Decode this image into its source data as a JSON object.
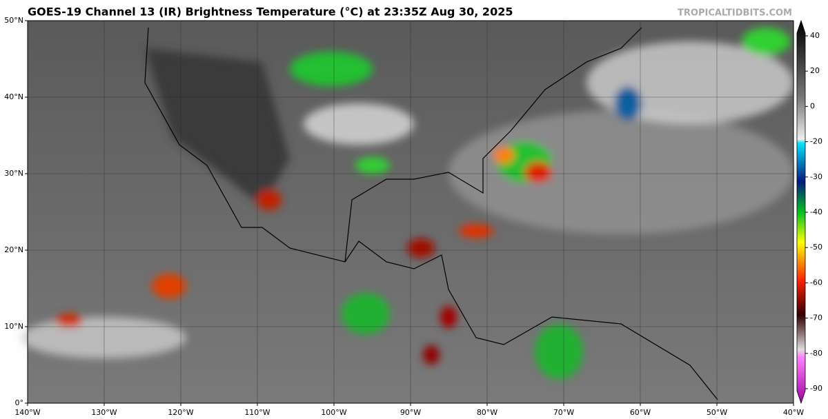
{
  "map": {
    "title": "GOES-19 Channel 13 (IR) Brightness Temperature (°C) at 23:35Z Aug 30, 2025",
    "source": "TROPICALTIDBITS.COM",
    "xlim": [
      -140,
      -40
    ],
    "ylim": [
      0,
      50
    ],
    "xticks": [
      {
        "value": -140,
        "label": "140°W"
      },
      {
        "value": -130,
        "label": "130°W"
      },
      {
        "value": -120,
        "label": "120°W"
      },
      {
        "value": -110,
        "label": "110°W"
      },
      {
        "value": -100,
        "label": "100°W"
      },
      {
        "value": -90,
        "label": "90°W"
      },
      {
        "value": -80,
        "label": "80°W"
      },
      {
        "value": -70,
        "label": "70°W"
      },
      {
        "value": -60,
        "label": "60°W"
      },
      {
        "value": -50,
        "label": "50°W"
      },
      {
        "value": -40,
        "label": "40°W"
      }
    ],
    "yticks": [
      {
        "value": 0,
        "label": "0°"
      },
      {
        "value": 10,
        "label": "10°N"
      },
      {
        "value": 20,
        "label": "20°N"
      },
      {
        "value": 30,
        "label": "30°N"
      },
      {
        "value": 40,
        "label": "40°N"
      },
      {
        "value": 50,
        "label": "50°N"
      }
    ],
    "grid": true,
    "colorbar_ticks": [
      40,
      20,
      0,
      -20,
      -30,
      -40,
      -50,
      -60,
      -70,
      -80,
      -90
    ]
  }
}
